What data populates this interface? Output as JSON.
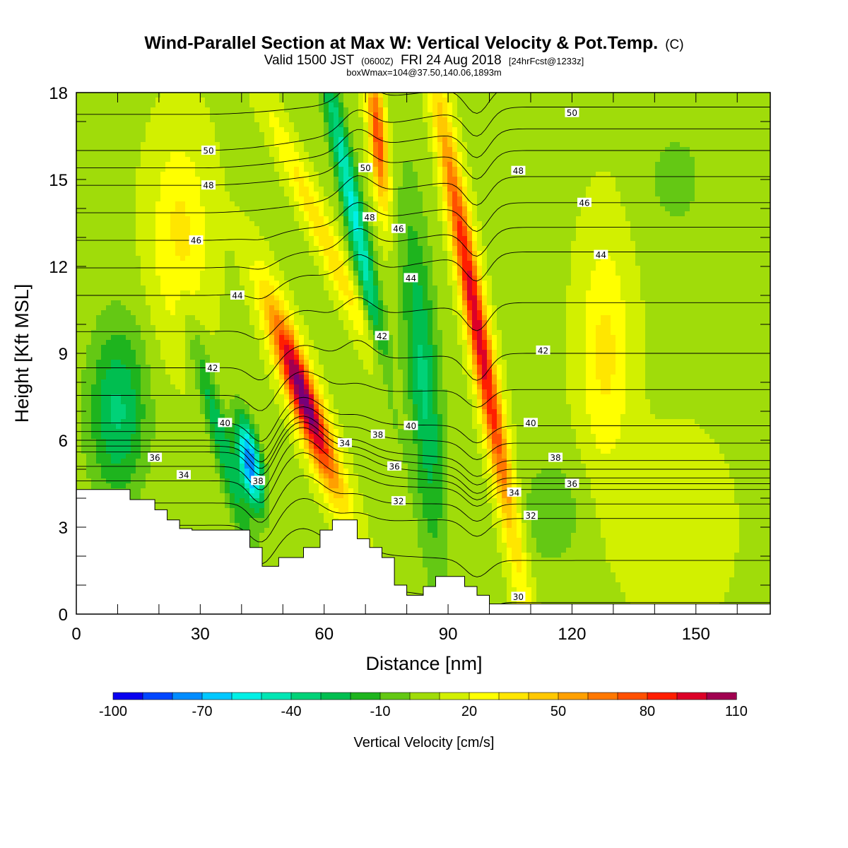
{
  "chart_data": {
    "type": "heatmap",
    "title": "Wind-Parallel Section at Max W: Vertical Velocity & Pot.Temp.",
    "title_mark": "(C)",
    "subtitle_parts": [
      "Valid 1500 JST",
      "(0600Z)",
      "FRI 24 Aug 2018",
      "[24hrFcst@1233z]"
    ],
    "subtitle2": "boxWmax=104@37.50,140.06,1893m",
    "xlabel": "Distance [nm]",
    "ylabel": "Height [Kft MSL]",
    "xlim": [
      0,
      168
    ],
    "ylim": [
      0,
      18
    ],
    "xticks": [
      0,
      30,
      60,
      90,
      120,
      150
    ],
    "yticks": [
      0,
      3,
      6,
      9,
      12,
      15,
      18
    ],
    "colorbar": {
      "label": "Vertical Velocity [cm/s]",
      "min": -100,
      "max": 110,
      "step": 10,
      "tick_labels": [
        "-100",
        "-70",
        "-40",
        "-10",
        "20",
        "50",
        "80",
        "110"
      ],
      "tick_values": [
        -100,
        -70,
        -40,
        -10,
        20,
        50,
        80,
        110
      ],
      "colors": [
        "#0a00f0",
        "#0046ff",
        "#008cff",
        "#00c8ff",
        "#00f0e6",
        "#00e6b4",
        "#00d278",
        "#00be50",
        "#1eb41e",
        "#64c814",
        "#a0dc0a",
        "#d2f000",
        "#ffff00",
        "#ffe600",
        "#ffc800",
        "#ffa000",
        "#ff7800",
        "#ff5000",
        "#ff1e00",
        "#dc0028",
        "#a00050",
        "#780078"
      ]
    },
    "terrain": [
      [
        0,
        4.3
      ],
      [
        13,
        4.3
      ],
      [
        13,
        3.95
      ],
      [
        19,
        3.95
      ],
      [
        19,
        3.6
      ],
      [
        22,
        3.6
      ],
      [
        22,
        3.25
      ],
      [
        25,
        3.25
      ],
      [
        25,
        2.95
      ],
      [
        28,
        2.95
      ],
      [
        28,
        2.9
      ],
      [
        42,
        2.9
      ],
      [
        42,
        2.3
      ],
      [
        45,
        2.3
      ],
      [
        45,
        1.65
      ],
      [
        49,
        1.65
      ],
      [
        49,
        1.95
      ],
      [
        55,
        1.95
      ],
      [
        55,
        2.3
      ],
      [
        59,
        2.3
      ],
      [
        59,
        2.9
      ],
      [
        62,
        2.9
      ],
      [
        62,
        3.25
      ],
      [
        68,
        3.25
      ],
      [
        68,
        2.6
      ],
      [
        71,
        2.6
      ],
      [
        71,
        2.3
      ],
      [
        74,
        2.3
      ],
      [
        74,
        1.95
      ],
      [
        77,
        1.95
      ],
      [
        77,
        1.0
      ],
      [
        80,
        1.0
      ],
      [
        80,
        0.65
      ],
      [
        84,
        0.65
      ],
      [
        84,
        0.95
      ],
      [
        87,
        0.95
      ],
      [
        87,
        1.3
      ],
      [
        94,
        1.3
      ],
      [
        94,
        0.95
      ],
      [
        97,
        0.95
      ],
      [
        97,
        0.65
      ],
      [
        100,
        0.65
      ],
      [
        100,
        0.35
      ],
      [
        168,
        0.35
      ]
    ],
    "w_features": [
      {
        "x": 55,
        "y": 7.5,
        "sx": 3.5,
        "sy": 3.2,
        "amp": 110,
        "tilt": -2.4
      },
      {
        "x": 97,
        "y": 10,
        "sx": 2.6,
        "sy": 7.5,
        "amp": 90,
        "tilt": -1.2
      },
      {
        "x": 73,
        "y": 16.5,
        "sx": 2.0,
        "sy": 2.5,
        "amp": 70,
        "tilt": -0.6
      },
      {
        "x": 60,
        "y": 13,
        "sx": 3.0,
        "sy": 4.5,
        "amp": 30,
        "tilt": -3.0
      },
      {
        "x": 42,
        "y": 5.2,
        "sx": 2.6,
        "sy": 1.5,
        "amp": -90,
        "tilt": -1.2
      },
      {
        "x": 67,
        "y": 14,
        "sx": 2.4,
        "sy": 5.5,
        "amp": -60,
        "tilt": -1.4
      },
      {
        "x": 84,
        "y": 8,
        "sx": 4.0,
        "sy": 6.0,
        "amp": -40,
        "tilt": -0.5
      },
      {
        "x": 10,
        "y": 7,
        "sx": 7.0,
        "sy": 3.0,
        "amp": -40,
        "tilt": 0.0
      },
      {
        "x": 35,
        "y": 6,
        "sx": 2.5,
        "sy": 4.0,
        "amp": -35,
        "tilt": -1.8
      },
      {
        "x": 25,
        "y": 13,
        "sx": 7.0,
        "sy": 3.5,
        "amp": 25,
        "tilt": 0.0
      },
      {
        "x": 128,
        "y": 9,
        "sx": 6.0,
        "sy": 4.0,
        "amp": 25,
        "tilt": 0.0
      },
      {
        "x": 115,
        "y": 3.5,
        "sx": 8.0,
        "sy": 2.0,
        "amp": -15,
        "tilt": 0.0
      },
      {
        "x": 145,
        "y": 15,
        "sx": 8.0,
        "sy": 2.0,
        "amp": -12,
        "tilt": 0.0
      },
      {
        "x": 145,
        "y": 3,
        "sx": 12.0,
        "sy": 3.0,
        "amp": 10,
        "tilt": 0.0
      }
    ],
    "theta_levels": [
      29,
      30,
      31,
      32,
      33,
      34,
      35,
      36,
      37,
      38,
      39,
      40,
      41,
      42,
      43,
      44,
      45,
      46,
      47,
      48,
      49,
      50,
      51
    ],
    "theta_profile_left": [
      [
        28,
        0
      ],
      [
        34,
        4.6
      ],
      [
        36,
        5.6
      ],
      [
        38,
        6.0
      ],
      [
        40,
        6.6
      ],
      [
        42,
        8.5
      ],
      [
        44,
        11.0
      ],
      [
        46,
        12.9
      ],
      [
        48,
        14.8
      ],
      [
        50,
        16.0
      ],
      [
        52,
        18.5
      ]
    ],
    "theta_profile_right": [
      [
        28,
        0
      ],
      [
        30,
        0.4
      ],
      [
        32,
        3.3
      ],
      [
        34,
        4.3
      ],
      [
        36,
        4.7
      ],
      [
        38,
        5.3
      ],
      [
        40,
        6.5
      ],
      [
        42,
        9.0
      ],
      [
        44,
        12.5
      ],
      [
        46,
        14.2
      ],
      [
        48,
        16.0
      ],
      [
        50,
        17.5
      ],
      [
        52,
        19.0
      ]
    ],
    "theta_labels": [
      {
        "text": "50",
        "x": 32,
        "y": 16.0
      },
      {
        "text": "48",
        "x": 32,
        "y": 14.8
      },
      {
        "text": "46",
        "x": 29,
        "y": 12.9
      },
      {
        "text": "44",
        "x": 39,
        "y": 11.0
      },
      {
        "text": "42",
        "x": 33,
        "y": 8.5
      },
      {
        "text": "40",
        "x": 36,
        "y": 6.6
      },
      {
        "text": "36",
        "x": 19,
        "y": 5.4
      },
      {
        "text": "34",
        "x": 26,
        "y": 4.8
      },
      {
        "text": "38",
        "x": 44,
        "y": 4.6
      },
      {
        "text": "34",
        "x": 65,
        "y": 5.9
      },
      {
        "text": "50",
        "x": 70,
        "y": 15.4
      },
      {
        "text": "48",
        "x": 71,
        "y": 13.7
      },
      {
        "text": "46",
        "x": 78,
        "y": 13.3
      },
      {
        "text": "44",
        "x": 81,
        "y": 11.6
      },
      {
        "text": "42",
        "x": 74,
        "y": 9.6
      },
      {
        "text": "40",
        "x": 81,
        "y": 6.5
      },
      {
        "text": "38",
        "x": 73,
        "y": 6.2
      },
      {
        "text": "36",
        "x": 77,
        "y": 5.1
      },
      {
        "text": "32",
        "x": 78,
        "y": 3.9
      },
      {
        "text": "50",
        "x": 120,
        "y": 17.3
      },
      {
        "text": "48",
        "x": 107,
        "y": 15.3
      },
      {
        "text": "46",
        "x": 123,
        "y": 14.2
      },
      {
        "text": "44",
        "x": 127,
        "y": 12.4
      },
      {
        "text": "42",
        "x": 113,
        "y": 9.1
      },
      {
        "text": "40",
        "x": 110,
        "y": 6.6
      },
      {
        "text": "38",
        "x": 116,
        "y": 5.4
      },
      {
        "text": "36",
        "x": 120,
        "y": 4.5
      },
      {
        "text": "34",
        "x": 106,
        "y": 4.2
      },
      {
        "text": "32",
        "x": 110,
        "y": 3.4
      },
      {
        "text": "30",
        "x": 107,
        "y": 0.6
      }
    ]
  }
}
